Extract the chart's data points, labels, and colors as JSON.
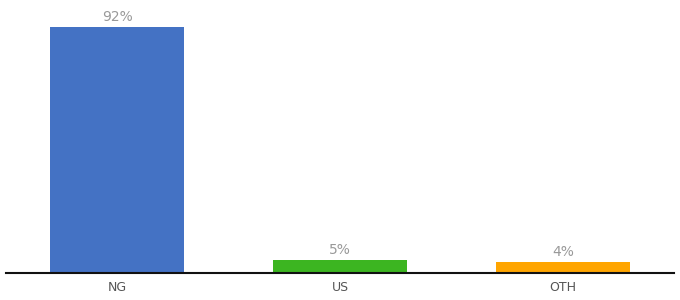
{
  "categories": [
    "NG",
    "US",
    "OTH"
  ],
  "values": [
    92,
    5,
    4
  ],
  "bar_colors": [
    "#4472C4",
    "#3CB521",
    "#FFA500"
  ],
  "labels": [
    "92%",
    "5%",
    "4%"
  ],
  "background_color": "#ffffff",
  "ylim": [
    0,
    100
  ],
  "bar_width": 0.6,
  "label_fontsize": 10,
  "tick_fontsize": 9,
  "label_color": "#999999",
  "tick_color": "#555555",
  "x_positions": [
    0,
    1,
    2
  ],
  "xlim": [
    -0.5,
    2.5
  ]
}
